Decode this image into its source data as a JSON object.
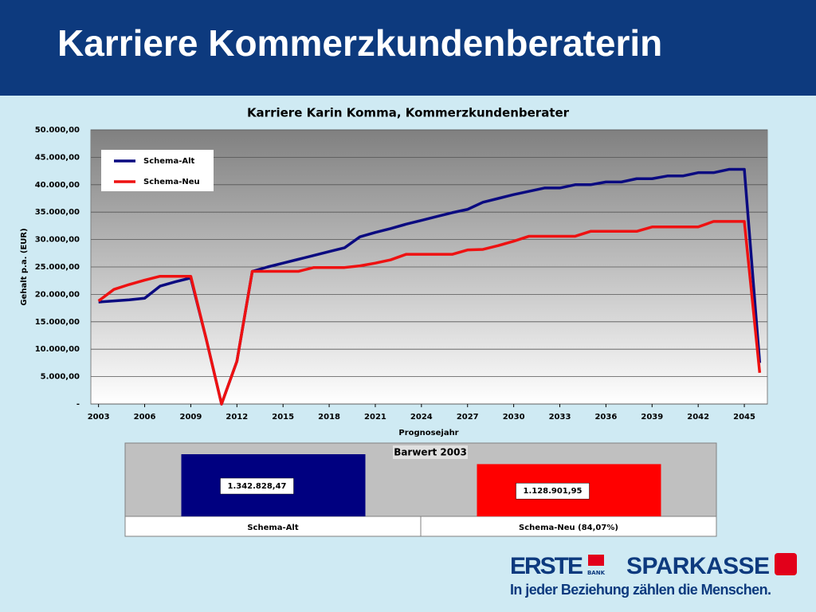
{
  "header": {
    "title": "Karriere Kommerzkundenberaterin"
  },
  "chart_data": [
    {
      "type": "line",
      "title": "Karriere Karin Komma, Kommerzkundenberater",
      "x_label": "Prognosejahr",
      "y_label": "Gehalt p.a. (EUR)",
      "x": [
        2003,
        2004,
        2005,
        2006,
        2007,
        2008,
        2009,
        2010,
        2011,
        2012,
        2013,
        2014,
        2015,
        2016,
        2017,
        2018,
        2019,
        2020,
        2021,
        2022,
        2023,
        2024,
        2025,
        2026,
        2027,
        2028,
        2029,
        2030,
        2031,
        2032,
        2033,
        2034,
        2035,
        2036,
        2037,
        2038,
        2039,
        2040,
        2041,
        2042,
        2043,
        2044,
        2045,
        2046
      ],
      "series": [
        {
          "name": "Schema-Alt",
          "color": "#0a0a80",
          "values": [
            18600,
            18800,
            19000,
            19300,
            21500,
            22300,
            23000,
            11900,
            0,
            7800,
            24200,
            25000,
            25700,
            26400,
            27100,
            27800,
            28500,
            30500,
            31300,
            32000,
            32800,
            33500,
            34200,
            34900,
            35500,
            36800,
            37500,
            38200,
            38800,
            39400,
            39400,
            40000,
            40000,
            40500,
            40500,
            41100,
            41100,
            41600,
            41600,
            42200,
            42200,
            42800,
            42800,
            7500
          ]
        },
        {
          "name": "Schema-Neu",
          "color": "#ee1111",
          "values": [
            18800,
            20900,
            21800,
            22600,
            23300,
            23300,
            23300,
            11900,
            0,
            7800,
            24200,
            24200,
            24200,
            24200,
            24900,
            24900,
            24900,
            25200,
            25700,
            26300,
            27300,
            27300,
            27300,
            27300,
            28100,
            28200,
            28900,
            29700,
            30600,
            30600,
            30600,
            30600,
            31500,
            31500,
            31500,
            31500,
            32300,
            32300,
            32300,
            32300,
            33300,
            33300,
            33300,
            5700
          ]
        }
      ],
      "xlim": [
        2002.5,
        2046.5
      ],
      "xticks": [
        2003,
        2006,
        2009,
        2012,
        2015,
        2018,
        2021,
        2024,
        2027,
        2030,
        2033,
        2036,
        2039,
        2042,
        2045
      ],
      "ylim": [
        0,
        50000
      ],
      "yticks": [
        {
          "value": 0,
          "label": "-"
        },
        {
          "value": 5000,
          "label": "5.000,00"
        },
        {
          "value": 10000,
          "label": "10.000,00"
        },
        {
          "value": 15000,
          "label": "15.000,00"
        },
        {
          "value": 20000,
          "label": "20.000,00"
        },
        {
          "value": 25000,
          "label": "25.000,00"
        },
        {
          "value": 30000,
          "label": "30.000,00"
        },
        {
          "value": 35000,
          "label": "35.000,00"
        },
        {
          "value": 40000,
          "label": "40.000,00"
        },
        {
          "value": 45000,
          "label": "45.000,00"
        },
        {
          "value": 50000,
          "label": "50.000,00"
        }
      ],
      "grid": true,
      "legend": "upper left"
    },
    {
      "type": "bar",
      "title": "Barwert 2003",
      "categories": [
        "Schema-Alt",
        "Schema-Neu (84,07%)"
      ],
      "values": [
        1342828.47,
        1128901.95
      ],
      "value_labels": [
        "1.342.828,47",
        "1.128.901,95"
      ],
      "colors": [
        "#000080",
        "#ff0000"
      ]
    }
  ],
  "footer": {
    "brand1": "ERSTE",
    "brand1_sub": "BANK",
    "brand2": "SPARKASSE",
    "slogan": "In jeder Beziehung zählen die Menschen."
  }
}
